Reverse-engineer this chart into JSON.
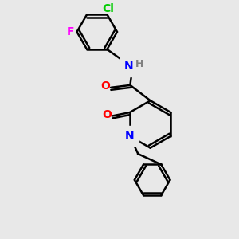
{
  "bg_color": "#e8e8e8",
  "bond_color": "#000000",
  "N_color": "#0000ff",
  "O_color": "#ff0000",
  "Cl_color": "#00cc00",
  "F_color": "#ff00ff",
  "H_color": "#808080",
  "line_width": 1.8,
  "font_size": 10,
  "xlim": [
    0,
    10
  ],
  "ylim": [
    0,
    10
  ]
}
